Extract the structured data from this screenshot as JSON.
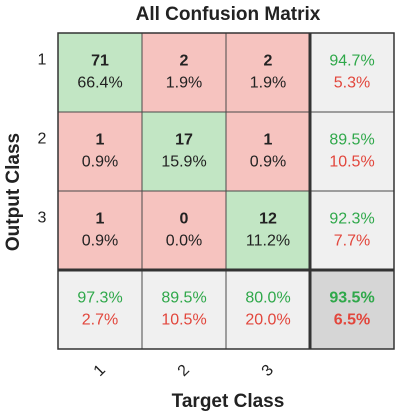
{
  "title": "All Confusion Matrix",
  "x_label": "Target Class",
  "y_label": "Output Class",
  "target_classes": [
    "1",
    "2",
    "3"
  ],
  "output_classes": [
    "1",
    "2",
    "3"
  ],
  "cells": [
    [
      {
        "count": 71,
        "percent": "66.4%"
      },
      {
        "count": 2,
        "percent": "1.9%"
      },
      {
        "count": 2,
        "percent": "1.9%"
      }
    ],
    [
      {
        "count": 1,
        "percent": "0.9%"
      },
      {
        "count": 17,
        "percent": "15.9%"
      },
      {
        "count": 1,
        "percent": "0.9%"
      }
    ],
    [
      {
        "count": 1,
        "percent": "0.9%"
      },
      {
        "count": 0,
        "percent": "0.0%"
      },
      {
        "count": 12,
        "percent": "11.2%"
      }
    ]
  ],
  "row_summary": [
    {
      "correct": "94.7%",
      "wrong": "5.3%"
    },
    {
      "correct": "89.5%",
      "wrong": "10.5%"
    },
    {
      "correct": "92.3%",
      "wrong": "7.7%"
    }
  ],
  "column_summary": [
    {
      "correct": "97.3%",
      "wrong": "2.7%"
    },
    {
      "correct": "89.5%",
      "wrong": "10.5%"
    },
    {
      "correct": "80.0%",
      "wrong": "20.0%"
    }
  ],
  "overall": {
    "correct": "93.5%",
    "wrong": "6.5%"
  }
}
